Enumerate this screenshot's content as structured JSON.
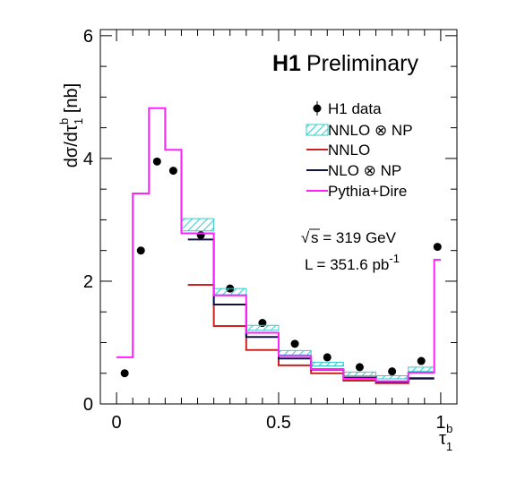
{
  "chart_data": {
    "type": "line",
    "title_bold": "H1",
    "title_rest": "Preliminary",
    "xlabel": {
      "main": "τ",
      "sub": "1",
      "sup": "b"
    },
    "ylabel": {
      "pre": "dσ/dτ",
      "sub": "1",
      "sup": "b",
      "post": " [nb]"
    },
    "xlim": [
      -0.05,
      1.05
    ],
    "ylim": [
      0,
      6.1
    ],
    "xticks": [
      {
        "v": 0,
        "label": "0"
      },
      {
        "v": 0.5,
        "label": "0.5"
      },
      {
        "v": 1,
        "label": "1"
      }
    ],
    "yticks": [
      {
        "v": 0,
        "label": "0"
      },
      {
        "v": 2,
        "label": "2"
      },
      {
        "v": 4,
        "label": "4"
      },
      {
        "v": 6,
        "label": "6"
      }
    ],
    "bin_edges": [
      0,
      0.05,
      0.1,
      0.15,
      0.2,
      0.3,
      0.4,
      0.5,
      0.6,
      0.7,
      0.8,
      0.9,
      0.98
    ],
    "series": [
      {
        "name": "H1 data",
        "kind": "points",
        "color": "#000000",
        "x": [
          0.025,
          0.075,
          0.125,
          0.175,
          0.26,
          0.35,
          0.45,
          0.55,
          0.65,
          0.75,
          0.85,
          0.94,
          0.99
        ],
        "y": [
          0.5,
          2.5,
          3.95,
          3.8,
          2.75,
          1.88,
          1.32,
          0.98,
          0.76,
          0.6,
          0.53,
          0.7,
          2.56
        ]
      },
      {
        "name": "NNLO ⊗ NP",
        "kind": "band",
        "color": "#33cccc",
        "bins": [
          [
            0.2,
            0.3,
            2.82,
            3.02
          ],
          [
            0.3,
            0.4,
            1.78,
            1.88
          ],
          [
            0.4,
            0.5,
            1.2,
            1.28
          ],
          [
            0.5,
            0.6,
            0.8,
            0.87
          ],
          [
            0.6,
            0.7,
            0.62,
            0.68
          ],
          [
            0.7,
            0.8,
            0.46,
            0.52
          ],
          [
            0.8,
            0.9,
            0.41,
            0.46
          ],
          [
            0.9,
            0.98,
            0.53,
            0.6
          ]
        ]
      },
      {
        "name": "NNLO",
        "kind": "hist",
        "color": "#cc2222",
        "bins": [
          [
            0.22,
            0.3,
            1.94
          ],
          [
            0.3,
            0.4,
            1.27
          ],
          [
            0.4,
            0.5,
            0.88
          ],
          [
            0.5,
            0.6,
            0.63
          ],
          [
            0.6,
            0.7,
            0.5
          ],
          [
            0.7,
            0.8,
            0.38
          ],
          [
            0.8,
            0.9,
            0.34
          ],
          [
            0.9,
            0.98,
            0.41
          ]
        ]
      },
      {
        "name": "NLO ⊗ NP",
        "kind": "hist",
        "color": "#111144",
        "bins": [
          [
            0.22,
            0.3,
            2.68
          ],
          [
            0.3,
            0.4,
            1.62
          ],
          [
            0.4,
            0.5,
            1.09
          ],
          [
            0.5,
            0.6,
            0.74
          ],
          [
            0.6,
            0.7,
            0.56
          ],
          [
            0.7,
            0.8,
            0.43
          ],
          [
            0.8,
            0.9,
            0.36
          ],
          [
            0.9,
            0.98,
            0.42
          ]
        ]
      },
      {
        "name": "Pythia+Dire",
        "kind": "hist",
        "color": "#ff22ff",
        "bins": [
          [
            0,
            0.05,
            0.76
          ],
          [
            0.05,
            0.1,
            3.43
          ],
          [
            0.1,
            0.15,
            4.82
          ],
          [
            0.15,
            0.2,
            4.14
          ],
          [
            0.2,
            0.3,
            2.78
          ],
          [
            0.3,
            0.4,
            1.77
          ],
          [
            0.4,
            0.5,
            1.16
          ],
          [
            0.5,
            0.6,
            0.78
          ],
          [
            0.6,
            0.7,
            0.57
          ],
          [
            0.7,
            0.8,
            0.41
          ],
          [
            0.8,
            0.9,
            0.37
          ],
          [
            0.9,
            0.98,
            0.51
          ],
          [
            0.98,
            1.0,
            2.35
          ]
        ]
      }
    ],
    "legend_position": "top-right",
    "annotations": {
      "sqrt_s": {
        "pre": "s = 319 GeV"
      },
      "lumi": {
        "pre": "L = 351.6 pb",
        "sup": "-1"
      }
    }
  }
}
